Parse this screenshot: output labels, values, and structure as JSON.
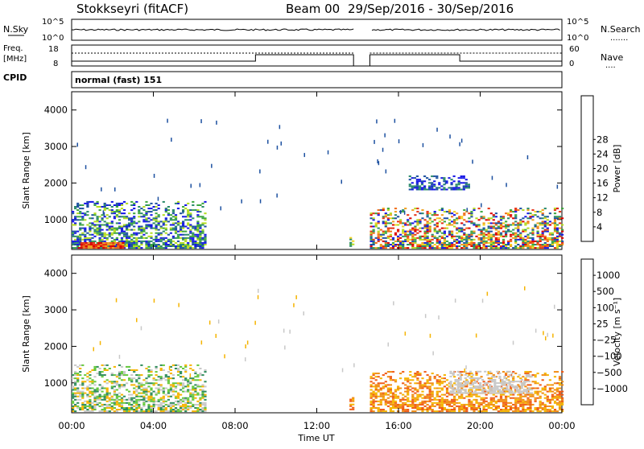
{
  "header": {
    "station": "Stokkseyri (fitACF)",
    "beam": "Beam 00",
    "date_range": "29/Sep/2016 - 30/Sep/2016"
  },
  "noise_panel": {
    "left_label": "N.Sky",
    "left_ticks": [
      "10^5",
      "10^0"
    ],
    "right_ticks": [
      "10^5",
      "10^0"
    ],
    "right_label": "N.Search",
    "right_legend": "......."
  },
  "freq_panel": {
    "left_label_1": "Freq.",
    "left_label_2": "[MHz]",
    "left_ticks": [
      "18",
      "8"
    ],
    "right_ticks": [
      "60",
      "0"
    ],
    "right_label": "Nave",
    "right_legend": "...."
  },
  "cpid": {
    "label": "CPID",
    "value": "normal (fast) 151"
  },
  "x_axis": {
    "label": "Time UT",
    "ticks": [
      "00:00",
      "04:00",
      "08:00",
      "12:00",
      "16:00",
      "20:00",
      "00:00"
    ]
  },
  "chart_data": [
    {
      "type": "heatmap",
      "title": "",
      "xlabel": "Time UT",
      "ylabel": "Slant Range [km]",
      "x_range_hours": [
        0,
        24
      ],
      "ylim": [
        180,
        4500
      ],
      "y_ticks": [
        "1000",
        "2000",
        "3000",
        "4000"
      ],
      "y_tick_values": [
        1000,
        2000,
        3000,
        4000
      ],
      "colorbar": {
        "label": "Power [dB]",
        "ticks": [
          "4",
          "8",
          "12",
          "16",
          "20",
          "24",
          "28"
        ],
        "tick_values": [
          4,
          8,
          12,
          16,
          20,
          24,
          28
        ],
        "colors": [
          "#1414e6",
          "#1c50a0",
          "#2a8a6a",
          "#3da63d",
          "#b4dc1e",
          "#f2d21e",
          "#f0a01e",
          "#f06e14",
          "#e63214",
          "#dc0000"
        ]
      },
      "echo_regions": [
        {
          "t_start": 0.0,
          "t_end": 6.5,
          "r_start": 200,
          "r_end": 1500,
          "level": "low-mid"
        },
        {
          "t_start": 0.3,
          "t_end": 2.5,
          "r_start": 200,
          "r_end": 350,
          "level": "high"
        },
        {
          "t_start": 13.6,
          "t_end": 13.8,
          "r_start": 250,
          "r_end": 600,
          "level": "mid"
        },
        {
          "t_start": 14.6,
          "t_end": 24.0,
          "r_start": 200,
          "r_end": 1300,
          "level": "mid-high"
        },
        {
          "t_start": 16.5,
          "t_end": 19.5,
          "r_start": 1800,
          "r_end": 2200,
          "level": "low"
        }
      ],
      "data_gap": {
        "t_start": 13.8,
        "t_end": 14.6
      }
    },
    {
      "type": "heatmap",
      "title": "",
      "xlabel": "Time UT",
      "ylabel": "Slant Range [km]",
      "x_range_hours": [
        0,
        24
      ],
      "ylim": [
        180,
        4500
      ],
      "y_ticks": [
        "1000",
        "2000",
        "3000",
        "4000"
      ],
      "y_tick_values": [
        1000,
        2000,
        3000,
        4000
      ],
      "colorbar": {
        "label": "Velocity [m s⁻¹]",
        "ticks": [
          "1000",
          "500",
          "100",
          "25",
          "−25",
          "−100",
          "−500",
          "−1000"
        ],
        "tick_values": [
          1000,
          500,
          100,
          25,
          -25,
          -100,
          -500,
          -1000
        ],
        "colors": [
          "#1c3cc8",
          "#3264a0",
          "#2e8c5a",
          "#64c83c",
          "#c8c8c8",
          "#f5b400",
          "#f08c14",
          "#f05a14",
          "#e61e1e"
        ]
      },
      "echo_regions": [
        {
          "t_start": 0.0,
          "t_end": 6.5,
          "r_start": 200,
          "r_end": 1500,
          "sign": "mixed"
        },
        {
          "t_start": 13.6,
          "t_end": 13.8,
          "r_start": 250,
          "r_end": 600,
          "sign": "negative"
        },
        {
          "t_start": 14.6,
          "t_end": 24.0,
          "r_start": 200,
          "r_end": 1300,
          "sign": "negative"
        },
        {
          "t_start": 18.5,
          "t_end": 22.5,
          "r_start": 700,
          "r_end": 1300,
          "sign": "near-zero"
        }
      ],
      "data_gap": {
        "t_start": 13.8,
        "t_end": 14.6
      }
    }
  ]
}
